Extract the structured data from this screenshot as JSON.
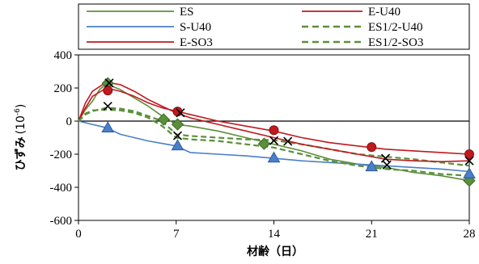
{
  "chart_data": {
    "type": "line",
    "title": "",
    "xlabel": "材齢（日）",
    "ylabel": "ひずみ",
    "ylabel_unit": "(10",
    "ylabel_exp": "-6",
    "ylabel_close": ")",
    "xlim": [
      0,
      28
    ],
    "ylim": [
      -600,
      400
    ],
    "xticks": [
      0,
      7,
      14,
      21,
      28
    ],
    "yticks": [
      400,
      200,
      0,
      -200,
      -400,
      -600
    ],
    "grid": false,
    "legend_placement": "top",
    "series": [
      {
        "name": "ES",
        "color": "#5b8f3a",
        "dashed": false,
        "marker": "diamond",
        "line": [
          [
            0,
            0
          ],
          [
            0.5,
            70
          ],
          [
            1,
            120
          ],
          [
            1.5,
            190
          ],
          [
            2,
            225
          ],
          [
            3,
            190
          ],
          [
            4,
            140
          ],
          [
            5,
            90
          ],
          [
            6,
            30
          ],
          [
            7,
            -20
          ],
          [
            8,
            -30
          ],
          [
            10,
            -60
          ],
          [
            12,
            -100
          ],
          [
            14,
            -140
          ],
          [
            16,
            -180
          ],
          [
            18,
            -230
          ],
          [
            20,
            -260
          ],
          [
            22,
            -280
          ],
          [
            24,
            -310
          ],
          [
            26,
            -330
          ],
          [
            28,
            -360
          ]
        ],
        "points": [
          [
            2.1,
            228
          ],
          [
            6.1,
            10
          ],
          [
            7.1,
            -20
          ],
          [
            13.3,
            -137
          ],
          [
            28,
            -360
          ]
        ]
      },
      {
        "name": "E-U40",
        "color": "#c0191e",
        "dashed": false,
        "marker": "circle",
        "line": [
          [
            0,
            0
          ],
          [
            0.5,
            80
          ],
          [
            1,
            150
          ],
          [
            2,
            200
          ],
          [
            3,
            180
          ],
          [
            4,
            150
          ],
          [
            5,
            110
          ],
          [
            6,
            80
          ],
          [
            7,
            60
          ],
          [
            8,
            40
          ],
          [
            10,
            0
          ],
          [
            12,
            -30
          ],
          [
            14,
            -60
          ],
          [
            16,
            -100
          ],
          [
            18,
            -130
          ],
          [
            20,
            -150
          ],
          [
            22,
            -170
          ],
          [
            24,
            -180
          ],
          [
            26,
            -190
          ],
          [
            28,
            -200
          ]
        ],
        "points": [
          [
            2.1,
            185
          ],
          [
            7.1,
            58
          ],
          [
            14,
            -55
          ],
          [
            21,
            -157
          ],
          [
            28,
            -200
          ]
        ]
      },
      {
        "name": "S-U40",
        "color": "#4a7fc9",
        "dashed": false,
        "marker": "triangle",
        "line": [
          [
            0,
            0
          ],
          [
            1,
            -20
          ],
          [
            2,
            -40
          ],
          [
            3,
            -80
          ],
          [
            4,
            -100
          ],
          [
            5,
            -120
          ],
          [
            6,
            -135
          ],
          [
            7,
            -150
          ],
          [
            8,
            -190
          ],
          [
            10,
            -200
          ],
          [
            12,
            -210
          ],
          [
            14,
            -225
          ],
          [
            16,
            -240
          ],
          [
            18,
            -250
          ],
          [
            20,
            -260
          ],
          [
            22,
            -270
          ],
          [
            24,
            -280
          ],
          [
            26,
            -290
          ],
          [
            28,
            -305
          ]
        ],
        "points": [
          [
            2.1,
            -40
          ],
          [
            7.1,
            -148
          ],
          [
            14,
            -222
          ],
          [
            21,
            -275
          ],
          [
            28,
            -318
          ]
        ]
      },
      {
        "name": "ES1/2-U40",
        "color": "#5b8f3a",
        "dashed": true,
        "marker": "cross",
        "line": [
          [
            0,
            0
          ],
          [
            0.5,
            40
          ],
          [
            1,
            60
          ],
          [
            2,
            80
          ],
          [
            3,
            75
          ],
          [
            4,
            60
          ],
          [
            5,
            30
          ],
          [
            6,
            0
          ],
          [
            7,
            -80
          ],
          [
            8,
            -90
          ],
          [
            10,
            -100
          ],
          [
            12,
            -110
          ],
          [
            14,
            -115
          ],
          [
            16,
            -140
          ],
          [
            18,
            -170
          ],
          [
            20,
            -200
          ],
          [
            22,
            -215
          ],
          [
            24,
            -230
          ],
          [
            26,
            -250
          ],
          [
            28,
            -270
          ]
        ],
        "points": [
          [
            2.1,
            90
          ],
          [
            7.1,
            -88
          ],
          [
            14,
            -118
          ],
          [
            15,
            -122
          ],
          [
            22,
            -225
          ]
        ]
      },
      {
        "name": "E-SO3",
        "color": "#c0191e",
        "dashed": false,
        "marker": "cross",
        "line": [
          [
            0,
            0
          ],
          [
            0.5,
            110
          ],
          [
            1,
            180
          ],
          [
            2,
            235
          ],
          [
            3,
            220
          ],
          [
            4,
            180
          ],
          [
            5,
            130
          ],
          [
            6,
            90
          ],
          [
            7,
            50
          ],
          [
            8,
            20
          ],
          [
            10,
            -20
          ],
          [
            12,
            -60
          ],
          [
            14,
            -100
          ],
          [
            16,
            -140
          ],
          [
            18,
            -170
          ],
          [
            20,
            -200
          ],
          [
            22,
            -230
          ],
          [
            24,
            -240
          ],
          [
            26,
            -245
          ],
          [
            28,
            -240
          ]
        ],
        "points": [
          [
            2.2,
            230
          ],
          [
            7.3,
            50
          ],
          [
            22.1,
            -265
          ],
          [
            28,
            -240
          ]
        ]
      },
      {
        "name": "ES1/2-SO3",
        "color": "#5b8f3a",
        "dashed": true,
        "marker": "none",
        "line": [
          [
            0,
            0
          ],
          [
            0.5,
            45
          ],
          [
            1,
            65
          ],
          [
            2,
            70
          ],
          [
            3,
            65
          ],
          [
            4,
            50
          ],
          [
            5,
            20
          ],
          [
            6,
            -30
          ],
          [
            7,
            -100
          ],
          [
            8,
            -110
          ],
          [
            10,
            -120
          ],
          [
            12,
            -140
          ],
          [
            14,
            -160
          ],
          [
            16,
            -200
          ],
          [
            18,
            -240
          ],
          [
            20,
            -270
          ],
          [
            22,
            -290
          ],
          [
            24,
            -300
          ],
          [
            26,
            -320
          ],
          [
            28,
            -330
          ]
        ],
        "points": []
      }
    ]
  }
}
